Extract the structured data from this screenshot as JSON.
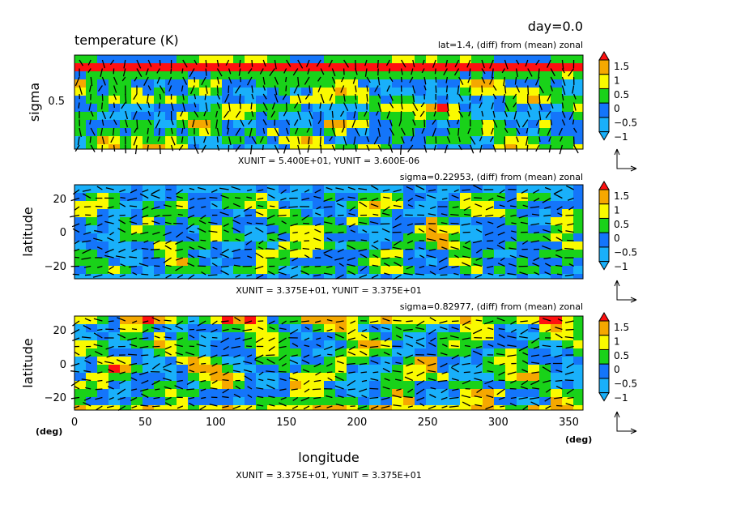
{
  "header": {
    "day": "day=0.0",
    "title": "temperature (K)"
  },
  "colorbar": {
    "levels": [
      1.5,
      1,
      0.5,
      0,
      -0.5,
      -1
    ],
    "labels": [
      "1.5",
      "1",
      "0.5",
      "0",
      "−0.5",
      "−1"
    ],
    "colors": [
      "#ff1010",
      "#f5a800",
      "#fafa00",
      "#19d219",
      "#1475fa",
      "#19b0fa"
    ],
    "color_order_note_free": [
      "above 1.5",
      "1 to 1.5",
      "0.5 to 1",
      "0 to 0.5",
      "-0.5 to 0",
      "below -1 / -1 to -0.5"
    ]
  },
  "chart_data": [
    {
      "type": "heatmap",
      "annotation": "lat=1.4, (diff) from (mean) zonal",
      "ylabel": "sigma",
      "y_ticks": [
        "0.5"
      ],
      "x_range": [
        0,
        360
      ],
      "y_range": [
        0,
        1
      ],
      "vector_units": "XUNIT = 5.400E+01, YUNIT = 3.600E-06",
      "fill": "colored contours with wind vectors"
    },
    {
      "type": "heatmap",
      "annotation": "sigma=0.22953, (diff) from (mean) zonal",
      "ylabel": "latitude",
      "y_ticks": [
        "20",
        "0",
        "−20"
      ],
      "x_range": [
        0,
        360
      ],
      "y_range": [
        -30,
        30
      ],
      "vector_units": "XUNIT = 3.375E+01, YUNIT = 3.375E+01",
      "fill": "colored contours with wind vectors"
    },
    {
      "type": "heatmap",
      "annotation": "sigma=0.82977, (diff) from (mean) zonal",
      "ylabel": "latitude",
      "y_ticks": [
        "20",
        "0",
        "−20"
      ],
      "x_ticks": [
        "0",
        "50",
        "100",
        "150",
        "200",
        "250",
        "300",
        "350"
      ],
      "x_range": [
        0,
        360
      ],
      "y_range": [
        -30,
        30
      ],
      "xlabel": "longitude",
      "x_unit_left": "(deg)",
      "x_unit_right": "(deg)",
      "vector_units": "XUNIT = 3.375E+01, YUNIT = 3.375E+01",
      "fill": "colored contours with wind vectors"
    }
  ]
}
